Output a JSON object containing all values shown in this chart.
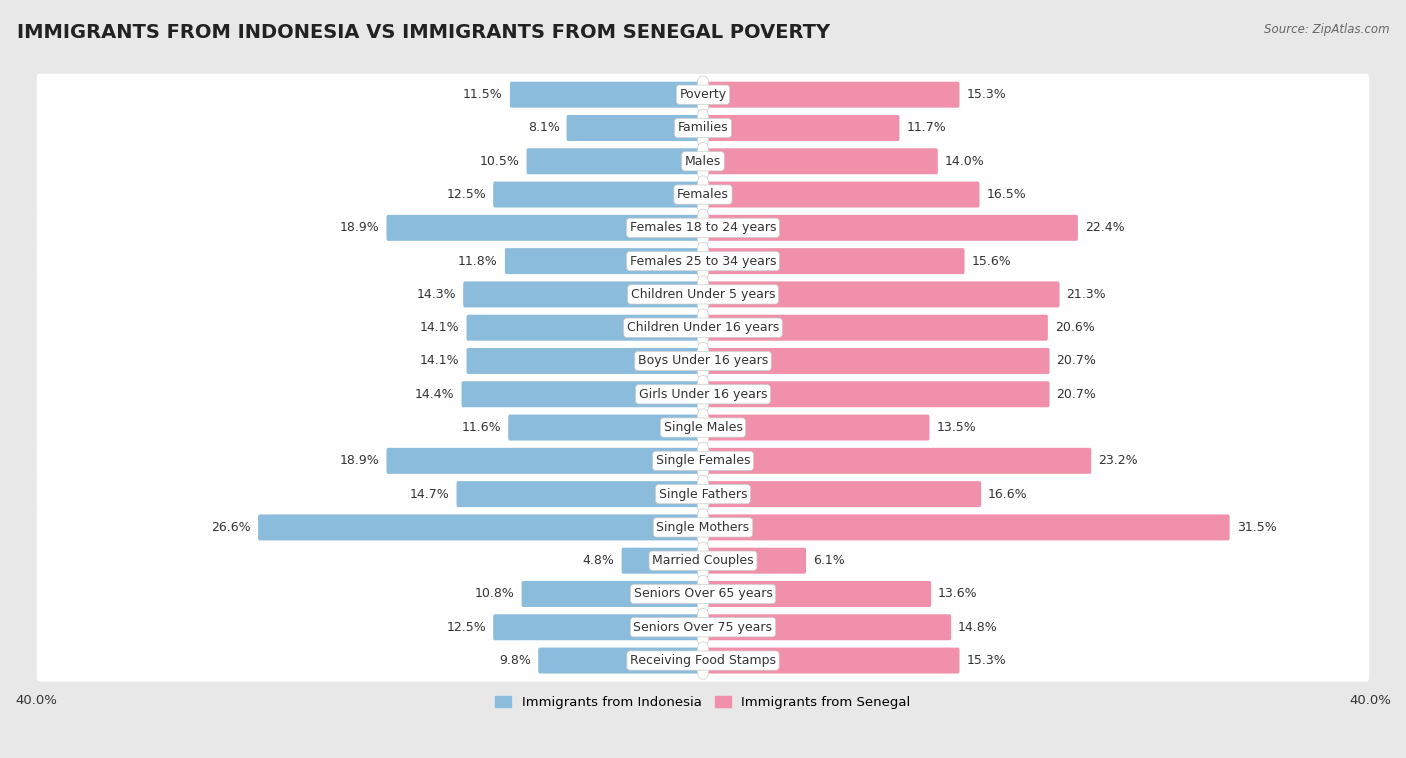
{
  "title": "IMMIGRANTS FROM INDONESIA VS IMMIGRANTS FROM SENEGAL POVERTY",
  "source": "Source: ZipAtlas.com",
  "categories": [
    "Poverty",
    "Families",
    "Males",
    "Females",
    "Females 18 to 24 years",
    "Females 25 to 34 years",
    "Children Under 5 years",
    "Children Under 16 years",
    "Boys Under 16 years",
    "Girls Under 16 years",
    "Single Males",
    "Single Females",
    "Single Fathers",
    "Single Mothers",
    "Married Couples",
    "Seniors Over 65 years",
    "Seniors Over 75 years",
    "Receiving Food Stamps"
  ],
  "indonesia_values": [
    11.5,
    8.1,
    10.5,
    12.5,
    18.9,
    11.8,
    14.3,
    14.1,
    14.1,
    14.4,
    11.6,
    18.9,
    14.7,
    26.6,
    4.8,
    10.8,
    12.5,
    9.8
  ],
  "senegal_values": [
    15.3,
    11.7,
    14.0,
    16.5,
    22.4,
    15.6,
    21.3,
    20.6,
    20.7,
    20.7,
    13.5,
    23.2,
    16.6,
    31.5,
    6.1,
    13.6,
    14.8,
    15.3
  ],
  "indonesia_color": "#8bbcdc",
  "senegal_color": "#f090aa",
  "indonesia_label": "Immigrants from Indonesia",
  "senegal_label": "Immigrants from Senegal",
  "axis_limit": 40.0,
  "background_color": "#e8e8e8",
  "row_bg_color": "#f5f5f5",
  "row_alt_color": "#e0e0e0",
  "bar_height": 0.62,
  "title_fontsize": 14,
  "label_fontsize": 9,
  "value_fontsize": 9
}
